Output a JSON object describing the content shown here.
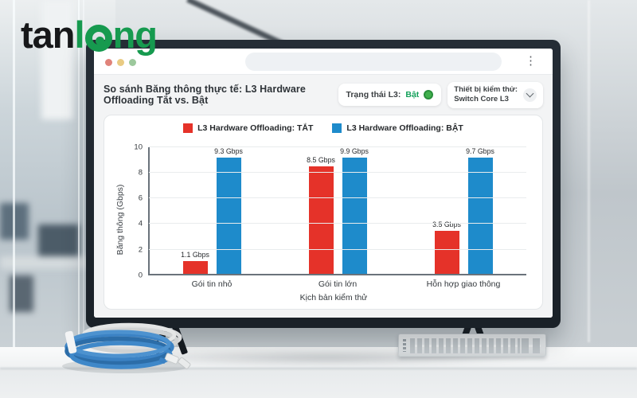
{
  "logo": {
    "black": "tan",
    "green_l": "l",
    "green_ng": "ng",
    "color": "#169a4f"
  },
  "browser": {
    "address_value": "",
    "menu_glyph": "⋮"
  },
  "header": {
    "title": "So sánh Băng thông thực tế: L3 Hardware Offloading Tắt vs. Bật",
    "status": {
      "label": "Trạng thái L3:",
      "value": "Bật",
      "value_color": "#13a05a",
      "dot_color": "#41b04d"
    },
    "device": {
      "label": "Thiết bị kiểm thử:",
      "value": "Switch Core L3"
    }
  },
  "chart_data": {
    "type": "bar",
    "categories": [
      "Gói tin nhỏ",
      "Gói tin lớn",
      "Hỗn hợp giao thông"
    ],
    "series": [
      {
        "name": "L3 Hardware Offloading: TẮT",
        "color": "#e53229",
        "values": [
          1.1,
          8.5,
          3.5
        ]
      },
      {
        "name": "L3 Hardware Offloading: BẬT",
        "color": "#1e8bcb",
        "values": [
          9.3,
          9.9,
          9.7
        ]
      }
    ],
    "value_suffix": " Gbps",
    "xlabel": "Kịch bản kiểm thử",
    "ylabel": "Băng thông (Gbps)",
    "ylim": [
      0,
      10
    ],
    "yticks": [
      0,
      2,
      4,
      6,
      8,
      10
    ],
    "grid": true,
    "legend_position": "top"
  },
  "colors": {
    "bar_off": "#e53229",
    "bar_on": "#1e8bcb",
    "accent_green": "#169a4f",
    "win_dot_red": "#e0837a",
    "win_dot_yellow": "#e9cb83",
    "win_dot_green": "#9cc89c"
  }
}
